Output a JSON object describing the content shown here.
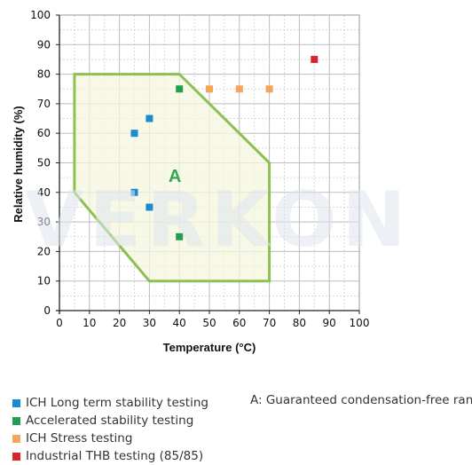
{
  "chart_data": {
    "type": "scatter",
    "xlabel": "Temperature (°C)",
    "ylabel": "Relative humidity (%)",
    "xlim": [
      0,
      100
    ],
    "ylim": [
      0,
      100
    ],
    "x_ticks": [
      0,
      10,
      20,
      30,
      40,
      50,
      60,
      70,
      80,
      90,
      100
    ],
    "y_ticks": [
      0,
      10,
      20,
      30,
      40,
      50,
      60,
      70,
      80,
      90,
      100
    ],
    "grid": true,
    "region": {
      "label": "A",
      "polygon": [
        [
          5,
          80
        ],
        [
          40,
          80
        ],
        [
          70,
          50
        ],
        [
          70,
          10
        ],
        [
          30,
          10
        ],
        [
          5,
          40
        ]
      ],
      "fill": "#f6f6df",
      "stroke": "#8cc152"
    },
    "series": [
      {
        "name": "ICH Long term stability testing",
        "color": "#1b8bcf",
        "points": [
          [
            25,
            60
          ],
          [
            30,
            65
          ],
          [
            25,
            40
          ],
          [
            30,
            35
          ]
        ]
      },
      {
        "name": "Accelerated stability testing",
        "color": "#23a04f",
        "points": [
          [
            40,
            75
          ],
          [
            40,
            25
          ]
        ]
      },
      {
        "name": "ICH Stress testing",
        "color": "#f5a55a",
        "points": [
          [
            50,
            75
          ],
          [
            60,
            75
          ],
          [
            70,
            75
          ]
        ]
      },
      {
        "name": "Industrial THB testing (85/85)",
        "color": "#d8262c",
        "points": [
          [
            85,
            85
          ]
        ]
      }
    ],
    "annotation": "A: Guaranteed condensation-free range",
    "watermark": "VERKON"
  }
}
